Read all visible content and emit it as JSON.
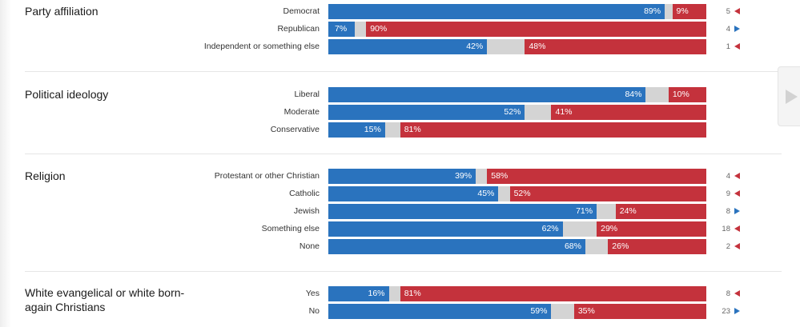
{
  "chart_data": {
    "type": "bar",
    "stacked": true,
    "orientation": "horizontal",
    "xlim": [
      0,
      100
    ],
    "colors": {
      "democrat": "#2a73be",
      "republican": "#c4323c",
      "other": "#d4d4d4"
    },
    "groups": [
      {
        "title": "Party affiliation",
        "rows": [
          {
            "label": "Democrat",
            "dem": 89,
            "rep": 9,
            "count": "5",
            "arrow": "left"
          },
          {
            "label": "Republican",
            "dem": 7,
            "rep": 90,
            "count": "4",
            "arrow": "right"
          },
          {
            "label": "Independent or something else",
            "dem": 42,
            "rep": 48,
            "count": "1",
            "arrow": "left"
          }
        ]
      },
      {
        "title": "Political ideology",
        "rows": [
          {
            "label": "Liberal",
            "dem": 84,
            "rep": 10,
            "count": "",
            "arrow": ""
          },
          {
            "label": "Moderate",
            "dem": 52,
            "rep": 41,
            "count": "",
            "arrow": ""
          },
          {
            "label": "Conservative",
            "dem": 15,
            "rep": 81,
            "count": "",
            "arrow": ""
          }
        ]
      },
      {
        "title": "Religion",
        "rows": [
          {
            "label": "Protestant or other Christian",
            "dem": 39,
            "rep": 58,
            "count": "4",
            "arrow": "left"
          },
          {
            "label": "Catholic",
            "dem": 45,
            "rep": 52,
            "count": "9",
            "arrow": "left"
          },
          {
            "label": "Jewish",
            "dem": 71,
            "rep": 24,
            "count": "8",
            "arrow": "right"
          },
          {
            "label": "Something else",
            "dem": 62,
            "rep": 29,
            "count": "18",
            "arrow": "left"
          },
          {
            "label": "None",
            "dem": 68,
            "rep": 26,
            "count": "2",
            "arrow": "left"
          }
        ]
      },
      {
        "title": "White evangelical or white born-again Christians",
        "rows": [
          {
            "label": "Yes",
            "dem": 16,
            "rep": 81,
            "count": "8",
            "arrow": "left"
          },
          {
            "label": "No",
            "dem": 59,
            "rep": 35,
            "count": "23",
            "arrow": "right"
          }
        ]
      }
    ]
  },
  "nav": {
    "next_icon": "chevron-right-icon"
  }
}
